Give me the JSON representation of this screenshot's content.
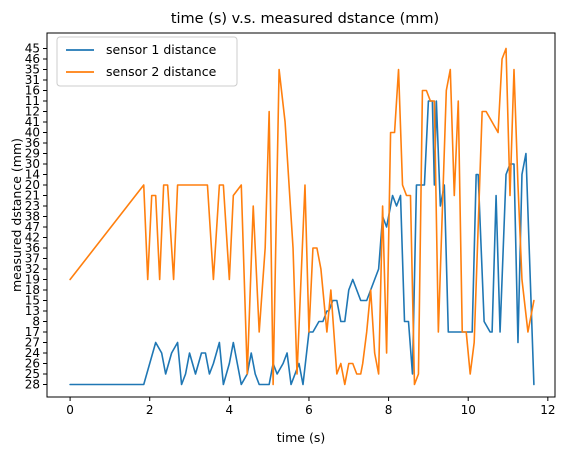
{
  "chart_data": {
    "type": "line",
    "title": "time (s) v.s. measured dstance (mm)",
    "xlabel": "time (s)",
    "ylabel": "measured dstance (mm)",
    "xlim": [
      -0.58,
      12.18
    ],
    "x_ticks": [
      0,
      2,
      4,
      6,
      8,
      10,
      12
    ],
    "y_categories": [
      "28",
      "25",
      "26",
      "24",
      "27",
      "17",
      "8",
      "13",
      "15",
      "18",
      "19",
      "32",
      "37",
      "36",
      "42",
      "47",
      "38",
      "23",
      "21",
      "20",
      "14",
      "30",
      "29",
      "36",
      "40",
      "41",
      "12",
      "11",
      "16",
      "31",
      "35",
      "46",
      "45"
    ],
    "legend": {
      "position": "upper left",
      "entries": [
        "sensor 1 distance",
        "sensor 2 distance"
      ]
    },
    "colors": {
      "series1": "#1f77b4",
      "series2": "#ff7f0e"
    },
    "series": [
      {
        "name": "sensor 1 distance",
        "x": [
          0.0,
          1.85,
          2.15,
          2.3,
          2.4,
          2.55,
          2.7,
          2.8,
          2.9,
          3.0,
          3.15,
          3.3,
          3.4,
          3.5,
          3.6,
          3.75,
          3.85,
          4.0,
          4.1,
          4.2,
          4.3,
          4.45,
          4.55,
          4.65,
          4.75,
          5.0,
          5.1,
          5.2,
          5.35,
          5.45,
          5.55,
          5.65,
          5.75,
          5.85,
          6.0,
          6.1,
          6.25,
          6.35,
          6.45,
          6.5,
          6.6,
          6.7,
          6.8,
          6.9,
          7.0,
          7.1,
          7.2,
          7.3,
          7.35,
          7.45,
          7.65,
          7.75,
          7.85,
          7.95,
          8.1,
          8.2,
          8.3,
          8.4,
          8.5,
          8.6,
          8.7,
          8.8,
          8.9,
          9.0,
          9.1,
          9.15,
          9.2,
          9.3,
          9.4,
          9.5,
          9.6,
          9.7,
          9.75,
          9.8,
          9.95,
          10.1,
          10.2,
          10.25,
          10.4,
          10.55,
          10.6,
          10.7,
          10.8,
          10.95,
          11.05,
          11.15,
          11.25,
          11.35,
          11.45,
          11.65
        ],
        "y": [
          "28",
          "28",
          "27",
          "24",
          "25",
          "24",
          "27",
          "28",
          "25",
          "24",
          "25",
          "24",
          "24",
          "25",
          "26",
          "27",
          "28",
          "26",
          "27",
          "26",
          "28",
          "25",
          "24",
          "25",
          "28",
          "28",
          "26",
          "25",
          "26",
          "24",
          "28",
          "25",
          "26",
          "28",
          "17",
          "17",
          "8",
          "8",
          "13",
          "13",
          "15",
          "15",
          "8",
          "8",
          "18",
          "19",
          "18",
          "15",
          "15",
          "15",
          "19",
          "32",
          "38",
          "47",
          "21",
          "23",
          "21",
          "8",
          "8",
          "25",
          "20",
          "20",
          "20",
          "11",
          "11",
          "20",
          "11",
          "23",
          "20",
          "17",
          "17",
          "17",
          "17",
          "17",
          "17",
          "17",
          "14",
          "14",
          "8",
          "17",
          "17",
          "21",
          "17",
          "14",
          "30",
          "30",
          "27",
          "14",
          "29",
          "28"
        ]
      },
      {
        "name": "sensor 2 distance",
        "x": [
          0.0,
          1.85,
          1.95,
          2.05,
          2.15,
          2.25,
          2.35,
          2.45,
          2.6,
          2.7,
          2.8,
          2.9,
          3.0,
          3.1,
          3.2,
          3.3,
          3.45,
          3.6,
          3.75,
          3.85,
          4.0,
          4.1,
          4.2,
          4.3,
          4.45,
          4.6,
          4.75,
          4.9,
          5.0,
          5.1,
          5.25,
          5.4,
          5.5,
          5.6,
          5.7,
          5.8,
          5.9,
          6.0,
          6.1,
          6.2,
          6.3,
          6.45,
          6.55,
          6.7,
          6.8,
          6.9,
          7.0,
          7.1,
          7.2,
          7.3,
          7.35,
          7.45,
          7.55,
          7.65,
          7.75,
          7.85,
          7.95,
          8.05,
          8.15,
          8.25,
          8.35,
          8.45,
          8.55,
          8.65,
          8.75,
          8.85,
          8.95,
          9.05,
          9.15,
          9.25,
          9.35,
          9.45,
          9.55,
          9.65,
          9.75,
          9.85,
          9.95,
          10.05,
          10.15,
          10.25,
          10.35,
          10.45,
          10.55,
          10.65,
          10.75,
          10.85,
          10.95,
          11.05,
          11.15,
          11.25,
          11.35,
          11.5,
          11.65
        ],
        "y": [
          "19",
          "20",
          "19",
          "21",
          "21",
          "19",
          "20",
          "20",
          "19",
          "20",
          "20",
          "20",
          "20",
          "20",
          "20",
          "20",
          "20",
          "19",
          "20",
          "20",
          "19",
          "21",
          "22",
          "20",
          "25",
          "23",
          "17",
          "36",
          "12",
          "28",
          "35",
          "41",
          "39",
          "36",
          "25",
          "22",
          "20",
          "17",
          "36",
          "36",
          "32",
          "17",
          "18",
          "25",
          "26",
          "28",
          "26",
          "26",
          "25",
          "25",
          "26",
          "17",
          "18",
          "24",
          "25",
          "23",
          "24",
          "40",
          "40",
          "35",
          "20",
          "21",
          "21",
          "28",
          "25",
          "16",
          "16",
          "11",
          "11",
          "17",
          "34",
          "16",
          "35",
          "21",
          "11",
          "17",
          "17",
          "25",
          "27",
          "22",
          "12",
          "12",
          "22",
          "22",
          "40",
          "46",
          "45",
          "21",
          "35",
          "20",
          "19",
          "17",
          "15"
        ]
      }
    ]
  }
}
